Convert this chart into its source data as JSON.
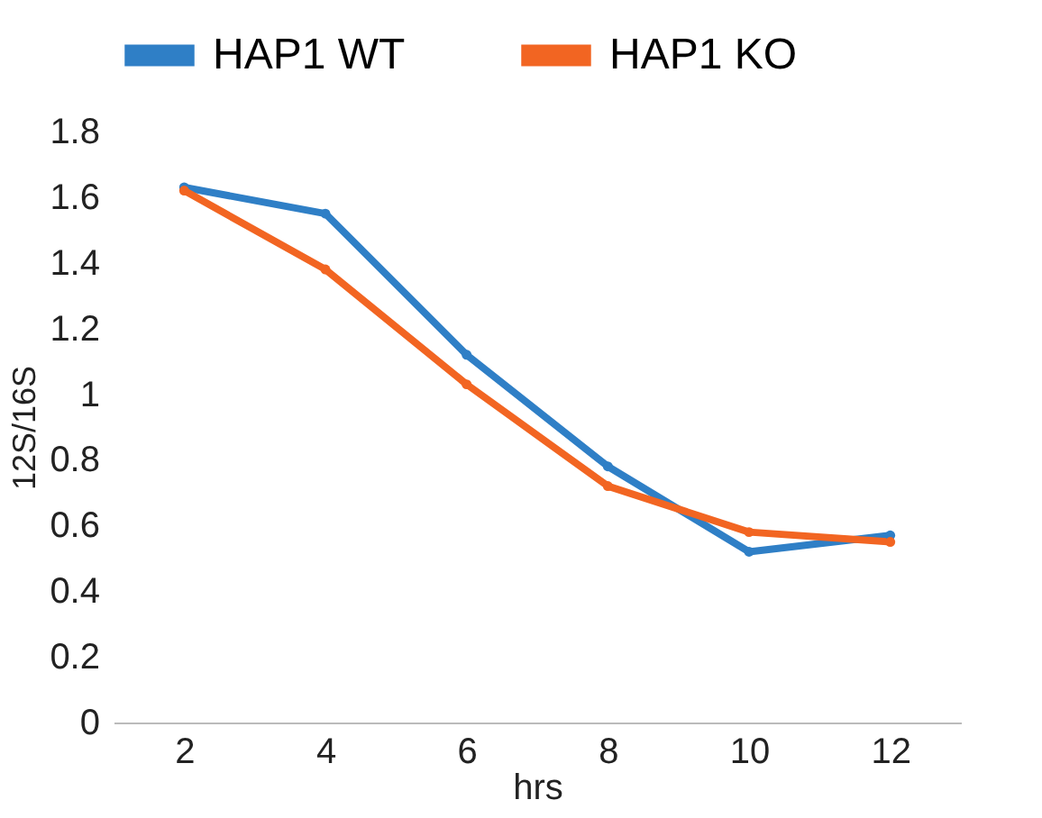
{
  "chart_data": {
    "type": "line",
    "xlabel": "hrs",
    "ylabel": "12S/16S",
    "categories": [
      "2",
      "4",
      "6",
      "8",
      "10",
      "12"
    ],
    "series": [
      {
        "name": "HAP1 WT",
        "color": "#2f7fc6",
        "values": [
          1.63,
          1.55,
          1.12,
          0.78,
          0.52,
          0.57
        ]
      },
      {
        "name": "HAP1 KO",
        "color": "#f26522",
        "values": [
          1.62,
          1.38,
          1.03,
          0.72,
          0.58,
          0.55
        ]
      }
    ],
    "ylim": [
      0,
      1.8
    ],
    "yticks": [
      0,
      0.2,
      0.4,
      0.6,
      0.8,
      1,
      1.2,
      1.4,
      1.6,
      1.8
    ],
    "grid": false,
    "legend": "top",
    "marker": "circle",
    "line_style": "solid"
  }
}
